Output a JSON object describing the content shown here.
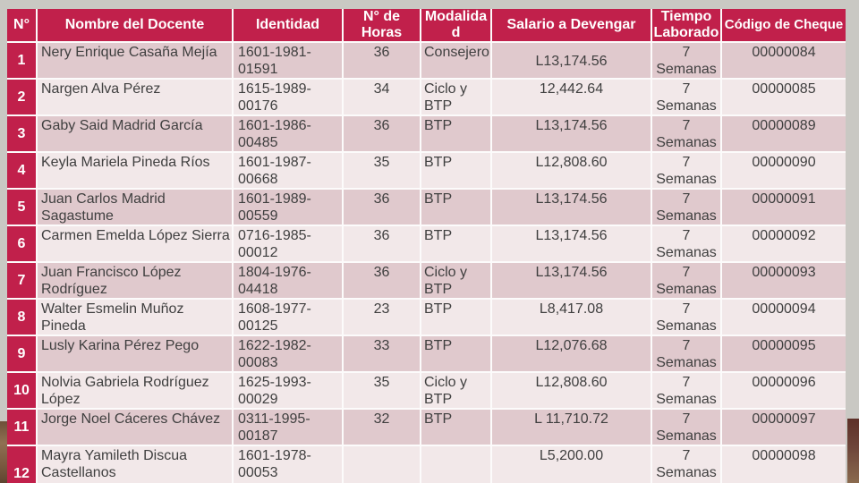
{
  "colors": {
    "header-bg": "#C1204B",
    "row-odd": "#E0C9CD",
    "row-even": "#F2E8E9",
    "grid-line": "#FCFBFB",
    "page-bg": "#C9C8C3",
    "cell-text": "#3F3F3F",
    "header-text": "#FFFFFF"
  },
  "table": {
    "header": {
      "num": "N°",
      "nombre": "Nombre del Docente",
      "identidad": "Identidad",
      "horas": "N° de Horas",
      "modalidad": "Modalidad",
      "salario": "Salario a Devengar",
      "tiempo": "Tiempo Laborado",
      "cheque": "Código de Cheque"
    },
    "rows": [
      {
        "num": "1",
        "nombre": "Nery Enrique Casaña Mejía",
        "identidad": "1601-1981-01591",
        "horas": "36",
        "modalidad": "Consejero",
        "salario": "L13,174.56",
        "tiempo": "7 Semanas",
        "cheque": "00000084"
      },
      {
        "num": "2",
        "nombre": "Nargen Alva Pérez",
        "identidad": "1615-1989-00176",
        "horas": "34",
        "modalidad": "Ciclo y BTP",
        "salario": "12,442.64",
        "tiempo": "7 Semanas",
        "cheque": "00000085"
      },
      {
        "num": "3",
        "nombre": "Gaby Said Madrid García",
        "identidad": "1601-1986-00485",
        "horas": "36",
        "modalidad": "BTP",
        "salario": "L13,174.56",
        "tiempo": "7 Semanas",
        "cheque": "00000089"
      },
      {
        "num": "4",
        "nombre": "Keyla Mariela Pineda Ríos",
        "identidad": "1601-1987-00668",
        "horas": "35",
        "modalidad": "BTP",
        "salario": "L12,808.60",
        "tiempo": "7 Semanas",
        "cheque": "00000090"
      },
      {
        "num": "5",
        "nombre": "Juan Carlos Madrid Sagastume",
        "identidad": "1601-1989-00559",
        "horas": "36",
        "modalidad": "BTP",
        "salario": "L13,174.56",
        "tiempo": "7 Semanas",
        "cheque": "00000091"
      },
      {
        "num": "6",
        "nombre": "Carmen Emelda López Sierra",
        "identidad": "0716-1985-00012",
        "horas": "36",
        "modalidad": "BTP",
        "salario": "L13,174.56",
        "tiempo": "7 Semanas",
        "cheque": "00000092"
      },
      {
        "num": "7",
        "nombre": "Juan Francisco López Rodríguez",
        "identidad": "1804-1976-04418",
        "horas": "36",
        "modalidad": "Ciclo y BTP",
        "salario": "L13,174.56",
        "tiempo": "7 Semanas",
        "cheque": "00000093"
      },
      {
        "num": "8",
        "nombre": "Walter Esmelin Muñoz Pineda",
        "identidad": "1608-1977-00125",
        "horas": "23",
        "modalidad": "BTP",
        "salario": "L8,417.08",
        "tiempo": "7 Semanas",
        "cheque": "00000094"
      },
      {
        "num": "9",
        "nombre": "Lusly Karina Pérez Pego",
        "identidad": "1622-1982-00083",
        "horas": "33",
        "modalidad": "BTP",
        "salario": "L12,076.68",
        "tiempo": "7 Semanas",
        "cheque": "00000095"
      },
      {
        "num": "10",
        "nombre": "Nolvia Gabriela Rodríguez López",
        "identidad": "1625-1993-00029",
        "horas": "35",
        "modalidad": "Ciclo y BTP",
        "salario": "L12,808.60",
        "tiempo": "7 Semanas",
        "cheque": "00000096"
      },
      {
        "num": "11",
        "nombre": "Jorge Noel Cáceres Chávez",
        "identidad": "0311-1995-00187",
        "horas": "32",
        "modalidad": "BTP",
        "salario": "L 11,710.72",
        "tiempo": "7 Semanas",
        "cheque": "00000097"
      },
      {
        "num": "12",
        "nombre": "Mayra Yamileth Discua Castellanos",
        "identidad": "1601-1978-00053",
        "horas": "",
        "modalidad": "",
        "salario": "L5,200.00",
        "tiempo": "7 Semanas",
        "cheque": "00000098"
      }
    ]
  }
}
